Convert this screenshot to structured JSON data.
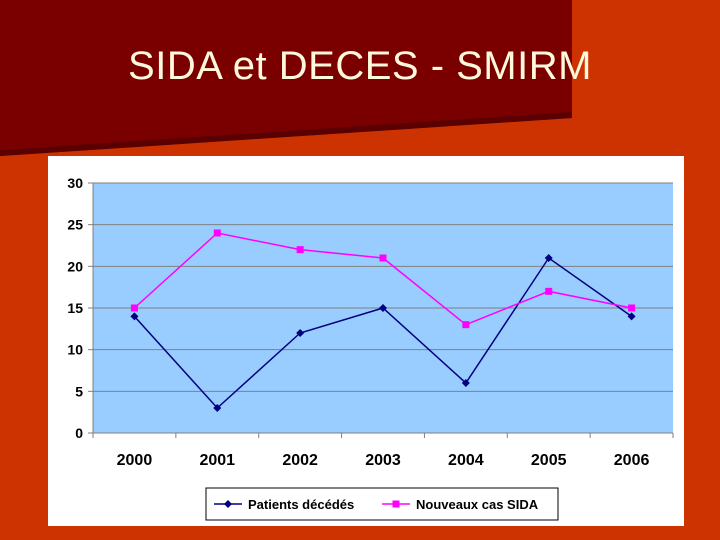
{
  "slide": {
    "title": "SIDA et DECES - SMIRM"
  },
  "colors": {
    "background": "#cc3300",
    "banner": "#8b0000",
    "plot_area": "#99ccff",
    "series_deaths": "#000080",
    "series_new_cases": "#ff00ff"
  },
  "chart_data": {
    "type": "line",
    "title": "",
    "xlabel": "",
    "ylabel": "",
    "categories": [
      "2000",
      "2001",
      "2002",
      "2003",
      "2004",
      "2005",
      "2006"
    ],
    "ylim": [
      0,
      30
    ],
    "yticks": [
      0,
      5,
      10,
      15,
      20,
      25,
      30
    ],
    "grid": true,
    "legend_position": "bottom",
    "series": [
      {
        "name": "Patients décédés",
        "marker": "diamond",
        "color": "#000080",
        "values": [
          14,
          3,
          12,
          15,
          6,
          21,
          14
        ]
      },
      {
        "name": "Nouveaux cas SIDA",
        "marker": "square",
        "color": "#ff00ff",
        "values": [
          15,
          24,
          22,
          21,
          13,
          17,
          15
        ]
      }
    ]
  }
}
